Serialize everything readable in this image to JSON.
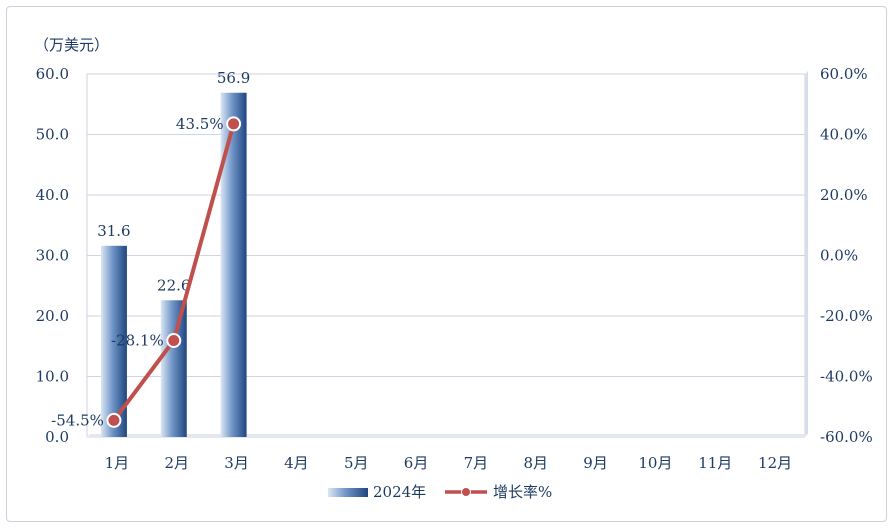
{
  "chart_data": {
    "type": "bar",
    "unit_label": "（万美元）",
    "categories": [
      "1月",
      "2月",
      "3月",
      "4月",
      "5月",
      "6月",
      "7月",
      "8月",
      "9月",
      "10月",
      "11月",
      "12月"
    ],
    "series": [
      {
        "name": "2024年",
        "type": "bar",
        "axis": "left",
        "values": [
          31.6,
          22.6,
          56.9,
          null,
          null,
          null,
          null,
          null,
          null,
          null,
          null,
          null
        ],
        "color": "#2e5a96"
      },
      {
        "name": "增长率%",
        "type": "line",
        "axis": "right",
        "values": [
          -54.5,
          -28.1,
          43.5,
          null,
          null,
          null,
          null,
          null,
          null,
          null,
          null,
          null
        ],
        "color": "#c0504d"
      }
    ],
    "bar_labels": [
      "31.6",
      "22.6",
      "56.9"
    ],
    "line_labels": [
      "-54.5%",
      "-28.1%",
      "43.5%"
    ],
    "y_left": {
      "min": 0,
      "max": 60,
      "ticks": [
        "0.0",
        "10.0",
        "20.0",
        "30.0",
        "40.0",
        "50.0",
        "60.0"
      ]
    },
    "y_right": {
      "min": -60,
      "max": 60,
      "ticks": [
        "-60.0%",
        "-40.0%",
        "-20.0%",
        "0.0%",
        "20.0%",
        "40.0%",
        "60.0%"
      ]
    },
    "grid": true,
    "legend_position": "bottom"
  }
}
